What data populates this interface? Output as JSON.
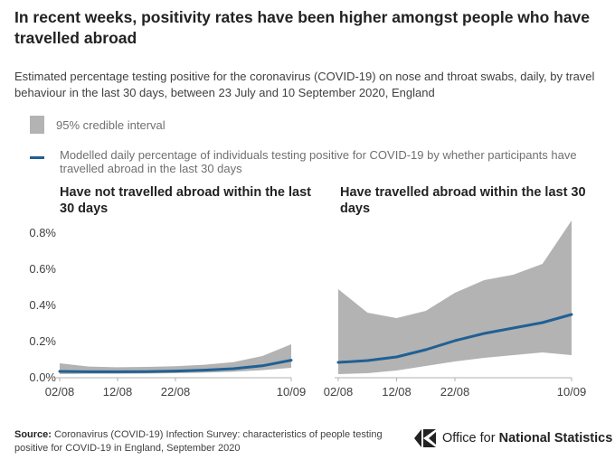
{
  "title": "In recent weeks, positivity rates have been higher amongst people who have travelled abroad",
  "subtitle": "Estimated percentage testing positive for the coronavirus (COVID-19) on nose and throat swabs, daily, by travel behaviour in the last 30 days, between 23 July and 10 September 2020, England",
  "legend": {
    "interval_label": "95% credible interval",
    "line_label": "Modelled daily percentage of individuals testing positive for COVID-19 by whether participants have travelled abroad in the last 30 days"
  },
  "colors": {
    "line": "#206095",
    "interval": "#b3b3b3",
    "axis": "#b0b0b0",
    "grid": "#d0d0d0"
  },
  "footer": {
    "source_label": "Source:",
    "source_text": "Coronavirus (COVID-19) Infection Survey: characteristics of people testing positive for COVID-19 in England, September 2020"
  },
  "logo": {
    "icon": "ons-logo-icon",
    "text_prefix": "Office for ",
    "text_bold": "National Statistics"
  },
  "chart_data": [
    {
      "type": "area",
      "title": "Have not travelled abroad within the last 30 days",
      "x": [
        "02/08",
        "07/08",
        "12/08",
        "17/08",
        "22/08",
        "27/08",
        "01/09",
        "06/09",
        "10/09"
      ],
      "xticks": [
        "02/08",
        "12/08",
        "22/08",
        "10/09"
      ],
      "yticks": [
        "0.0%",
        "0.2%",
        "0.4%",
        "0.6%",
        "0.8%"
      ],
      "ylim": [
        0,
        0.85
      ],
      "grid": false,
      "series": [
        {
          "name": "Modelled daily percentage of individuals testing positive for COVID-19 by whether participants have travelled abroad in the last 30 days",
          "values": [
            0.035,
            0.033,
            0.033,
            0.034,
            0.037,
            0.042,
            0.05,
            0.066,
            0.097
          ]
        }
      ],
      "interval": {
        "name": "95% credible interval",
        "lower": [
          0.02,
          0.022,
          0.022,
          0.023,
          0.025,
          0.028,
          0.033,
          0.042,
          0.055
        ],
        "upper": [
          0.08,
          0.062,
          0.058,
          0.06,
          0.064,
          0.072,
          0.086,
          0.12,
          0.185
        ]
      }
    },
    {
      "type": "area",
      "title": "Have travelled abroad within the last 30 days",
      "x": [
        "02/08",
        "07/08",
        "12/08",
        "17/08",
        "22/08",
        "27/08",
        "01/09",
        "06/09",
        "10/09"
      ],
      "xticks": [
        "02/08",
        "12/08",
        "22/08",
        "10/09"
      ],
      "yticks": [
        "0.0%",
        "0.2%",
        "0.4%",
        "0.6%",
        "0.8%"
      ],
      "ylim": [
        0,
        0.85
      ],
      "grid": false,
      "series": [
        {
          "name": "Modelled daily percentage of individuals testing positive for COVID-19 by whether participants have travelled abroad in the last 30 days",
          "values": [
            0.085,
            0.095,
            0.115,
            0.155,
            0.205,
            0.245,
            0.275,
            0.305,
            0.35
          ]
        }
      ],
      "interval": {
        "name": "95% credible interval",
        "lower": [
          0.02,
          0.025,
          0.04,
          0.065,
          0.09,
          0.11,
          0.125,
          0.14,
          0.125
        ],
        "upper": [
          0.49,
          0.36,
          0.33,
          0.37,
          0.47,
          0.54,
          0.57,
          0.63,
          0.87
        ]
      }
    }
  ]
}
